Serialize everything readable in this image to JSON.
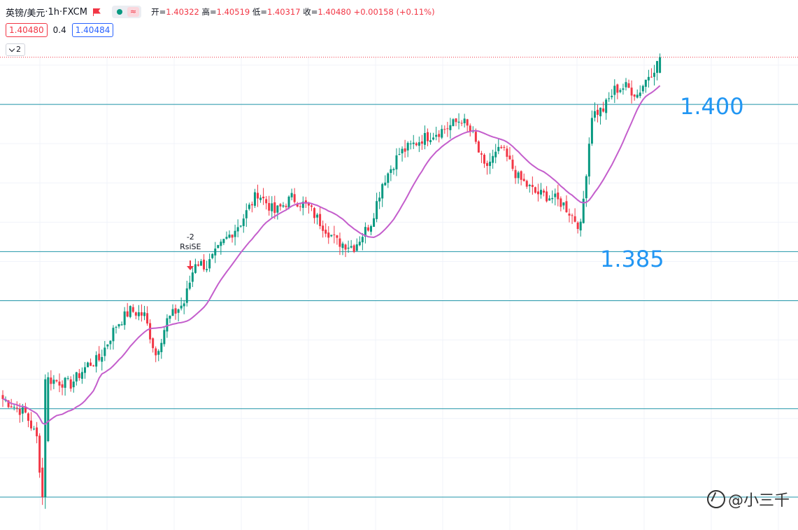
{
  "header": {
    "symbol": "英镑/美元",
    "sep1": " · ",
    "interval": "1h",
    "sep2": " · ",
    "exchange": "FXCM",
    "wave_icon": "≈",
    "ohlc": {
      "open_label": "开=",
      "open": "1.40322",
      "high_label": "高=",
      "high": "1.40519",
      "low_label": "低=",
      "low": "1.40317",
      "close_label": "收=",
      "close": "1.40480",
      "change": "+0.00158",
      "change_pct": "(+0.11%)"
    },
    "bid": "1.40480",
    "spread": "0.4",
    "ask": "1.40484",
    "indicator_count": "2"
  },
  "colors": {
    "up": "#089981",
    "down": "#f23645",
    "ma": "#c45ecc",
    "hline": "#2196a8",
    "level_text": "#2196f3"
  },
  "levels": [
    {
      "value": 1.4,
      "label": "1.400"
    },
    {
      "value": 1.385,
      "label": "1.385"
    }
  ],
  "signal": {
    "line1": "-2",
    "line2": "RsiSE"
  },
  "watermark": "@小三千",
  "chart_data": {
    "type": "candlestick",
    "title": "",
    "series": [
      {
        "name": "",
        "kind": "ohlc-trend",
        "anchors": [
          [
            0,
            1.37
          ],
          [
            8,
            1.3685
          ],
          [
            12,
            1.366
          ],
          [
            14,
            1.36
          ],
          [
            16,
            1.372
          ],
          [
            24,
            1.3715
          ],
          [
            30,
            1.3735
          ],
          [
            34,
            1.374
          ],
          [
            40,
            1.3775
          ],
          [
            45,
            1.379
          ],
          [
            50,
            1.3785
          ],
          [
            54,
            1.3745
          ],
          [
            58,
            1.378
          ],
          [
            64,
            1.3798
          ],
          [
            68,
            1.384
          ],
          [
            72,
            1.3835
          ],
          [
            78,
            1.386
          ],
          [
            84,
            1.388
          ],
          [
            90,
            1.391
          ],
          [
            96,
            1.389
          ],
          [
            102,
            1.3905
          ],
          [
            108,
            1.3895
          ],
          [
            112,
            1.388
          ],
          [
            118,
            1.386
          ],
          [
            124,
            1.3855
          ],
          [
            130,
            1.388
          ],
          [
            134,
            1.392
          ],
          [
            140,
            1.395
          ],
          [
            148,
            1.3965
          ],
          [
            156,
            1.3975
          ],
          [
            162,
            1.3985
          ],
          [
            166,
            1.3968
          ],
          [
            170,
            1.3935
          ],
          [
            176,
            1.3955
          ],
          [
            182,
            1.3925
          ],
          [
            188,
            1.391
          ],
          [
            194,
            1.3905
          ],
          [
            198,
            1.3898
          ],
          [
            204,
            1.3875
          ],
          [
            208,
            1.399
          ],
          [
            212,
            1.3995
          ],
          [
            216,
            1.4015
          ],
          [
            220,
            1.4018
          ],
          [
            224,
            1.401
          ],
          [
            228,
            1.403
          ],
          [
            232,
            1.4045
          ]
        ]
      },
      {
        "name": "",
        "kind": "moving-average"
      }
    ],
    "ylim": [
      1.3585,
      1.4045
    ],
    "y_gridlines": [
      1.36,
      1.364,
      1.368,
      1.372,
      1.376,
      1.38,
      1.384,
      1.388,
      1.392,
      1.396,
      1.4,
      1.404
    ],
    "horizontal_lines": [
      1.4,
      1.385,
      1.38,
      1.369,
      1.36
    ],
    "last_price": 1.4048,
    "grid": true
  }
}
